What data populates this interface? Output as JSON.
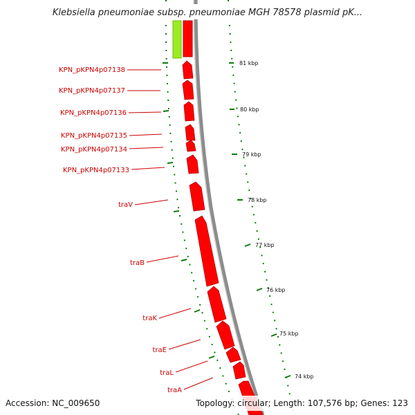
{
  "title": "Klebsiella pneumoniae subsp. pneumoniae MGH 78578 plasmid pK...",
  "footer": {
    "accession": "Accession: NC_009650",
    "summary": "Topology: circular; Length: 107,576 bp; Genes: 123"
  },
  "colors": {
    "gene": "#ff0000",
    "gene_outline": "#b30000",
    "other_feature": "#99ee22",
    "backbone": "#8c8c8c",
    "tick": "#0a7a0a",
    "label_text": "#cc0000",
    "leader": "#cc0000"
  },
  "ticks": [
    "81 kbp",
    "80 kbp",
    "79 kbp",
    "78 kbp",
    "77 kbp",
    "76 kbp",
    "75 kbp",
    "74 kbp"
  ],
  "genes": [
    "KPN_pKPN4p07138",
    "KPN_pKPN4p07137",
    "KPN_pKPN4p07136",
    "KPN_pKPN4p07135",
    "KPN_pKPN4p07134",
    "KPN_pKPN4p07133",
    "traV",
    "traB",
    "traK",
    "traE",
    "traL",
    "traA"
  ]
}
